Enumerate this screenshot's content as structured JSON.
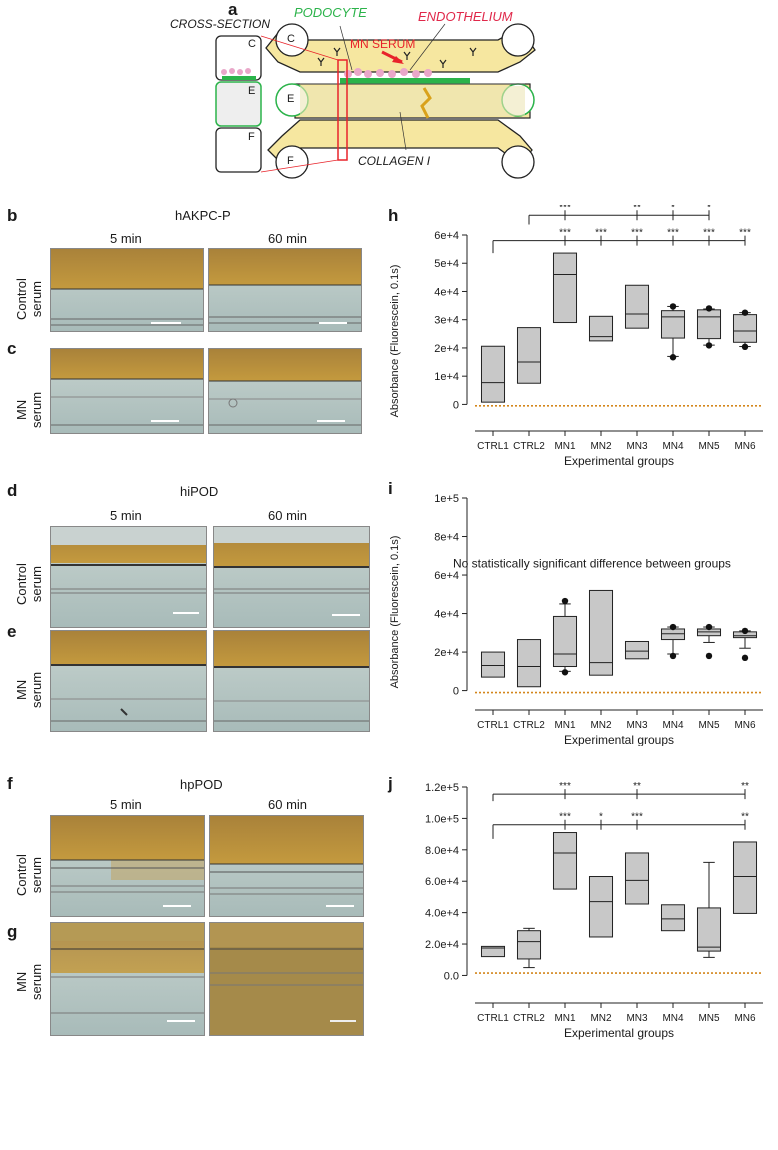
{
  "panel_a": {
    "label": "a",
    "cross_section": "CROSS-SECTION",
    "podocyte": "PODOCYTE",
    "endothelium": "ENDOTHELIUM",
    "mn_serum": "MN SERUM",
    "collagen": "COLLAGEN I",
    "channel_c": "C",
    "channel_e": "E",
    "channel_f": "F",
    "colors": {
      "podocyte": "#2bb34a",
      "endothelium": "#e0284a",
      "mn_serum": "#e8232a",
      "channel": "#f6e7a0"
    }
  },
  "micrographs": {
    "time_5": "5 min",
    "time_60": "60 min",
    "control_serum": [
      "Control",
      "serum"
    ],
    "mn_serum": [
      "MN",
      "serum"
    ],
    "b": {
      "label": "b",
      "cell": "hAKPC-P"
    },
    "c": {
      "label": "c"
    },
    "d": {
      "label": "d",
      "cell": "hiPOD"
    },
    "e": {
      "label": "e"
    },
    "f": {
      "label": "f",
      "cell": "hpPOD"
    },
    "g": {
      "label": "g"
    }
  },
  "chart_data": [
    {
      "panel": "h",
      "type": "box",
      "xlabel": "Experimental groups",
      "ylabel": "Absorbance (Fluorescein, 0.1s)",
      "ylim": [
        -8000,
        60000
      ],
      "yticks": [
        0,
        10000,
        20000,
        30000,
        40000,
        50000,
        60000
      ],
      "ytick_labels": [
        "0",
        "1e+4",
        "2e+4",
        "3e+4",
        "4e+4",
        "5e+4",
        "6e+4"
      ],
      "baseline": -500,
      "categories": [
        "CTRL1",
        "CTRL2",
        "MN1",
        "MN2",
        "MN3",
        "MN4",
        "MN5",
        "MN6"
      ],
      "boxes": [
        {
          "q1": 800,
          "median": 7700,
          "q3": 20600
        },
        {
          "q1": 7500,
          "median": 15000,
          "q3": 27200
        },
        {
          "q1": 29000,
          "median": 46000,
          "q3": 53600
        },
        {
          "q1": 22500,
          "median": 24000,
          "q3": 31200
        },
        {
          "q1": 27000,
          "median": 32000,
          "q3": 42200
        },
        {
          "q1": 23500,
          "median": 31000,
          "q3": 33200,
          "wlo": 17000,
          "whi": 34700,
          "outliers": [
            16700,
            34700
          ]
        },
        {
          "q1": 23300,
          "median": 31000,
          "q3": 33500,
          "wlo": 21000,
          "whi": 33800,
          "outliers": [
            20900,
            34000
          ]
        },
        {
          "q1": 22000,
          "median": 26000,
          "q3": 31800,
          "wlo": 20500,
          "whi": 32500,
          "outliers": [
            20400,
            32500
          ]
        }
      ],
      "sig_top": {
        "from": 1,
        "rise": 63700,
        "y": 67000,
        "targets": [
          2,
          4,
          5,
          6
        ],
        "stars": [
          "***",
          "**",
          "*",
          "*"
        ]
      },
      "sig_bottom": {
        "from": 0,
        "rise": 53600,
        "y": 58000,
        "targets": [
          2,
          3,
          4,
          5,
          6,
          7
        ],
        "stars": [
          "***",
          "***",
          "***",
          "***",
          "***",
          "***"
        ]
      }
    },
    {
      "panel": "i",
      "type": "box",
      "xlabel": "Experimental groups",
      "ylabel": "Absorbance (Fluorescein, 0.1s)",
      "ylim": [
        -8000,
        100000
      ],
      "yticks": [
        0,
        20000,
        40000,
        60000,
        80000,
        100000
      ],
      "ytick_labels": [
        "0",
        "2e+4",
        "4e+4",
        "6e+4",
        "8e+4",
        "1e+5"
      ],
      "baseline": -1000,
      "annotation": "No statistically significant difference between groups",
      "categories": [
        "CTRL1",
        "CTRL2",
        "MN1",
        "MN2",
        "MN3",
        "MN4",
        "MN5",
        "MN6"
      ],
      "boxes": [
        {
          "q1": 7000,
          "median": 13000,
          "q3": 20000
        },
        {
          "q1": 2000,
          "median": 12500,
          "q3": 26500
        },
        {
          "q1": 12500,
          "median": 19000,
          "q3": 38500,
          "wlo": 10000,
          "whi": 45000,
          "outliers": [
            9500,
            46500
          ]
        },
        {
          "q1": 8000,
          "median": 14500,
          "q3": 52000
        },
        {
          "q1": 16500,
          "median": 20500,
          "q3": 25500
        },
        {
          "q1": 26500,
          "median": 29500,
          "q3": 32000,
          "wlo": 19000,
          "whi": 33000,
          "outliers": [
            18000,
            33000
          ]
        },
        {
          "q1": 28500,
          "median": 30500,
          "q3": 32000,
          "wlo": 25000,
          "whi": 33000,
          "outliers": [
            18000,
            33000
          ]
        },
        {
          "q1": 27500,
          "median": 28500,
          "q3": 30500,
          "wlo": 22000,
          "whi": 31000,
          "outliers": [
            17000,
            31000
          ]
        }
      ]
    },
    {
      "panel": "j",
      "type": "box",
      "xlabel": "Experimental groups",
      "ylabel": "",
      "ylim": [
        -15000,
        120000
      ],
      "yticks": [
        0,
        20000,
        40000,
        60000,
        80000,
        100000,
        120000
      ],
      "ytick_labels": [
        "0.0",
        "2.0e+4",
        "4.0e+4",
        "6.0e+4",
        "8.0e+4",
        "1.0e+5",
        "1.2e+5"
      ],
      "baseline": 1500,
      "categories": [
        "CTRL1",
        "CTRL2",
        "MN1",
        "MN2",
        "MN3",
        "MN4",
        "MN5",
        "MN6"
      ],
      "boxes": [
        {
          "q1": 12000,
          "median": 17500,
          "q3": 18500
        },
        {
          "q1": 10500,
          "median": 21500,
          "q3": 28500,
          "wlo": 5000,
          "whi": 30000
        },
        {
          "q1": 55000,
          "median": 78000,
          "q3": 91000
        },
        {
          "q1": 24500,
          "median": 47000,
          "q3": 63000
        },
        {
          "q1": 45500,
          "median": 60500,
          "q3": 78000
        },
        {
          "q1": 28500,
          "median": 36000,
          "q3": 45000
        },
        {
          "q1": 15500,
          "median": 18000,
          "q3": 43000,
          "wlo": 11500,
          "whi": 72000
        },
        {
          "q1": 39500,
          "median": 63000,
          "q3": 85000
        }
      ],
      "sig_top": {
        "from": 0,
        "rise": 111000,
        "y": 115500,
        "targets": [
          2,
          4,
          7
        ],
        "stars": [
          "***",
          "**",
          "**"
        ]
      },
      "sig_bottom": {
        "from": 0,
        "rise": 87000,
        "y": 96000,
        "targets": [
          2,
          3,
          4,
          7
        ],
        "stars": [
          "***",
          "*",
          "***",
          "**"
        ]
      }
    }
  ]
}
